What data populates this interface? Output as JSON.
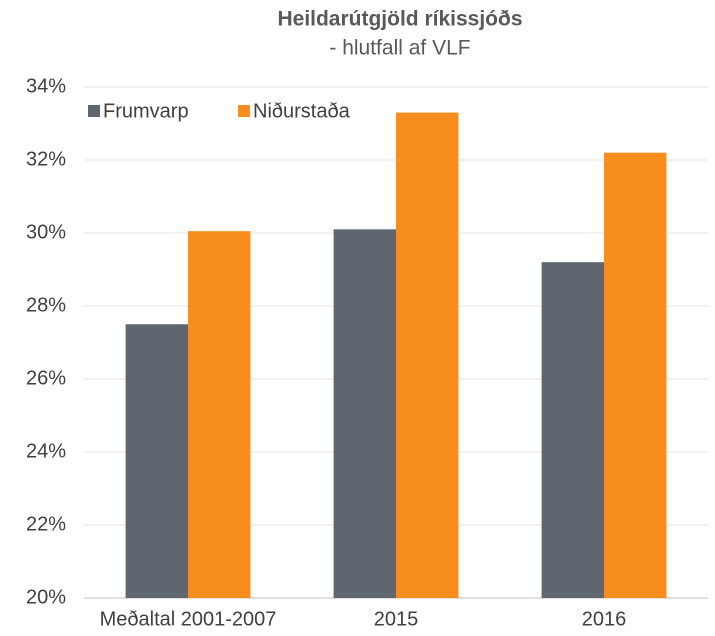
{
  "chart_data": {
    "type": "bar",
    "title": "Heildarútgjöld ríkissjóðs",
    "subtitle": "- hlutfall af VLF",
    "categories": [
      "Meðaltal 2001-2007",
      "2015",
      "2016"
    ],
    "series": [
      {
        "name": "Frumvarp",
        "color": "#5f6670",
        "values": [
          27.5,
          30.1,
          29.2
        ]
      },
      {
        "name": "Niðurstaða",
        "color": "#f68d1f",
        "values": [
          30.05,
          33.3,
          32.2
        ]
      }
    ],
    "ylim": [
      20,
      34
    ],
    "yticks": [
      {
        "value": 20,
        "label": "20%"
      },
      {
        "value": 22,
        "label": "22%"
      },
      {
        "value": 24,
        "label": "24%"
      },
      {
        "value": 26,
        "label": "26%"
      },
      {
        "value": 28,
        "label": "28%"
      },
      {
        "value": 30,
        "label": "30%"
      },
      {
        "value": 32,
        "label": "32%"
      },
      {
        "value": 34,
        "label": "34%"
      }
    ],
    "grid": true,
    "legend": "top-left"
  }
}
